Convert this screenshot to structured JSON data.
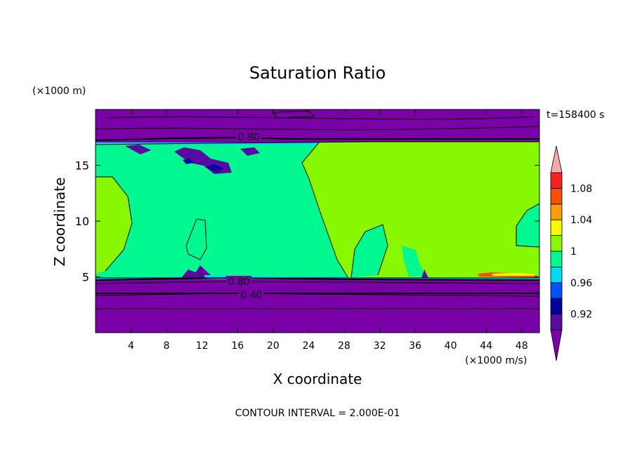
{
  "chart_data": {
    "type": "heatmap",
    "title": "Saturation Ratio",
    "xlabel": "X coordinate",
    "ylabel": "Z coordinate",
    "x_unit": "(×1000 m/s)",
    "y_unit": "(×1000 m)",
    "time_label": "t=158400 s",
    "footer": "CONTOUR INTERVAL = 2.000E-01",
    "xlim": [
      0,
      50
    ],
    "ylim": [
      0,
      20
    ],
    "x_ticks": [
      4,
      8,
      12,
      16,
      20,
      24,
      28,
      32,
      36,
      40,
      44,
      48
    ],
    "y_ticks": [
      5,
      10,
      15
    ],
    "colorbar": {
      "levels": [
        0.9,
        0.92,
        0.94,
        0.96,
        0.98,
        1.0,
        1.02,
        1.04,
        1.06,
        1.08,
        1.1
      ],
      "tick_labels": [
        "0.92",
        "0.96",
        "1",
        "1.04",
        "1.08"
      ],
      "tick_values": [
        0.92,
        0.96,
        1.0,
        1.04,
        1.08
      ],
      "under_color": "#7a00a8",
      "over_color": "#f4aaa8",
      "colors": [
        "#5a0aa0",
        "#0000a0",
        "#0050f8",
        "#00d8f8",
        "#00f890",
        "#88f800",
        "#f8f800",
        "#f8a000",
        "#f85000",
        "#f82020"
      ]
    },
    "contour_labels": [
      {
        "text": "0.80",
        "x": 17.5,
        "z": 17.6
      },
      {
        "text": "0.80",
        "x": 16.4,
        "z": 4.6
      },
      {
        "text": "0.40",
        "x": 17.2,
        "z": 3.5
      }
    ]
  }
}
